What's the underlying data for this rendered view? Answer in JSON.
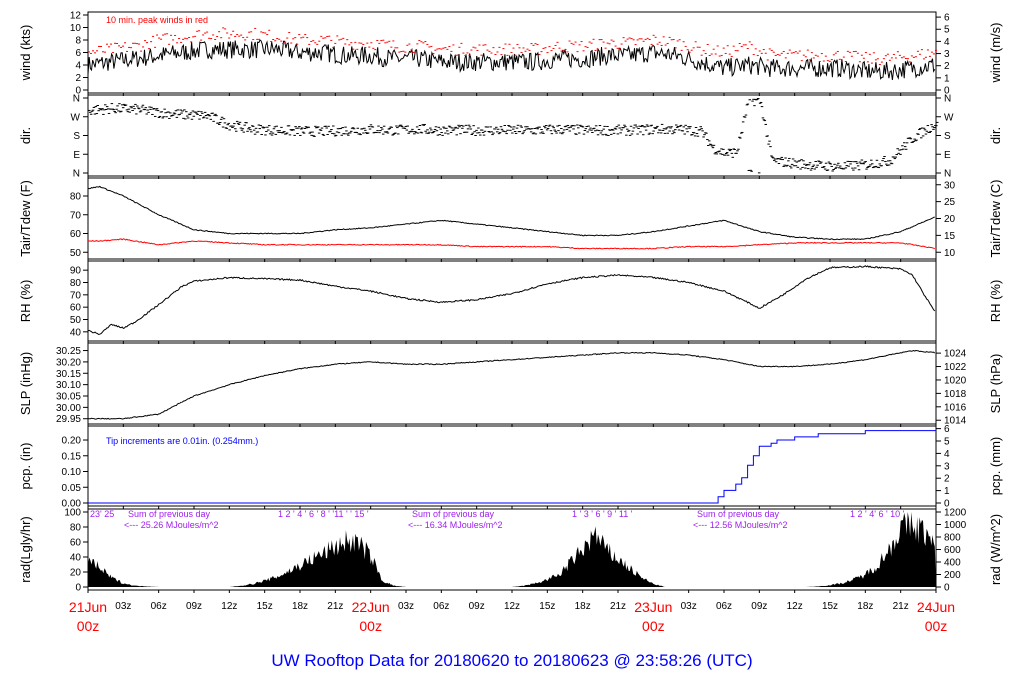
{
  "title": "UW Rooftop Data for 20180620  to  20180623 @ 23:58:26  (UTC)",
  "colors": {
    "line": "#000000",
    "peak": "#ff0000",
    "dew": "#ff0000",
    "pcp": "#0000ff",
    "annot": "#a020f0",
    "title": "#0000ff",
    "date": "#ff0000"
  },
  "chart_data": [
    {
      "id": "wind",
      "type": "line",
      "ylabel": "wind (kts)",
      "ylabel2": "wind (m/s)",
      "ylim": [
        0,
        12
      ],
      "yticks": [
        0,
        2,
        4,
        6,
        8,
        10,
        12
      ],
      "y2ticks": [
        0,
        1,
        2,
        3,
        4,
        5,
        6
      ],
      "y2factor": 0.5144,
      "annotation": "10 min. peak winds in red",
      "x_hours": [
        0,
        2,
        4,
        6,
        8,
        10,
        12,
        14,
        16,
        18,
        20,
        22,
        24,
        26,
        28,
        30,
        32,
        34,
        36,
        38,
        40,
        42,
        44,
        46,
        48,
        50,
        52,
        54,
        56,
        58,
        60,
        62,
        64,
        66,
        68,
        70,
        72
      ],
      "series": [
        {
          "name": "wind",
          "values": [
            4,
            4.5,
            5,
            5.5,
            6,
            6.5,
            6.5,
            6.5,
            6.5,
            6,
            6,
            5.5,
            5.5,
            5,
            5,
            4.5,
            4.5,
            4.5,
            4.5,
            4.5,
            5,
            5,
            5.5,
            5.5,
            6,
            5.5,
            4.5,
            3.5,
            4,
            3.5,
            3.5,
            3.5,
            3.5,
            3,
            3,
            3.5,
            4
          ]
        },
        {
          "name": "peak",
          "values": [
            6,
            6.5,
            7,
            8,
            8.5,
            9,
            9,
            9,
            8.5,
            8,
            8,
            7.5,
            7.5,
            7,
            7,
            6.5,
            6.5,
            6.5,
            6.5,
            6.5,
            7,
            7,
            7.5,
            7.5,
            8,
            7.5,
            6.5,
            6,
            7,
            5.5,
            5.5,
            5.5,
            5.5,
            5,
            5,
            5.5,
            6
          ]
        }
      ]
    },
    {
      "id": "dir",
      "type": "scatter",
      "ylabel": "dir.",
      "ylabel2": "dir.",
      "ylim": [
        0,
        360
      ],
      "yticklabels": [
        "N",
        "E",
        "S",
        "W",
        "N"
      ],
      "x_hours": [
        0,
        2,
        4,
        6,
        8,
        10,
        12,
        14,
        16,
        18,
        20,
        22,
        24,
        26,
        28,
        30,
        32,
        34,
        36,
        38,
        40,
        42,
        44,
        46,
        48,
        50,
        52,
        53,
        54,
        55,
        56,
        57,
        58,
        60,
        62,
        64,
        66,
        68,
        70,
        72
      ],
      "values": [
        300,
        310,
        305,
        290,
        280,
        275,
        230,
        210,
        205,
        200,
        200,
        205,
        210,
        205,
        210,
        205,
        205,
        205,
        205,
        205,
        210,
        205,
        205,
        205,
        210,
        210,
        200,
        120,
        95,
        100,
        350,
        345,
        60,
        45,
        35,
        30,
        40,
        60,
        170,
        240
      ]
    },
    {
      "id": "temp",
      "type": "line",
      "ylabel": "Tair/Tdew (F)",
      "ylabel2": "Tair/Tdew (C)",
      "ylim": [
        48,
        88
      ],
      "yticks": [
        50,
        60,
        70,
        80
      ],
      "y2ticks": [
        10,
        15,
        20,
        25,
        30
      ],
      "x_hours": [
        0,
        1,
        3,
        6,
        9,
        12,
        15,
        18,
        21,
        24,
        27,
        30,
        33,
        36,
        39,
        42,
        45,
        48,
        51,
        54,
        57,
        60,
        63,
        66,
        69,
        72
      ],
      "series": [
        {
          "name": "Tair",
          "values": [
            84,
            85,
            80,
            70,
            62,
            60,
            60,
            60,
            62,
            63,
            65,
            67,
            65,
            63,
            61,
            59,
            59,
            61,
            64,
            67,
            61,
            58,
            57,
            57,
            61,
            69
          ]
        },
        {
          "name": "Tdew",
          "values": [
            56,
            56,
            57,
            54,
            56,
            55,
            54,
            54,
            54,
            54,
            54,
            54,
            53,
            53,
            53,
            52,
            52,
            52,
            53,
            53,
            54,
            55,
            55,
            55,
            55,
            52
          ]
        }
      ]
    },
    {
      "id": "rh",
      "type": "line",
      "ylabel": "RH (%)",
      "ylabel2": "RH (%)",
      "ylim": [
        35,
        95
      ],
      "yticks": [
        40,
        50,
        60,
        70,
        80,
        90
      ],
      "x_hours": [
        0,
        1,
        2,
        3,
        4,
        6,
        8,
        9,
        12,
        15,
        18,
        21,
        24,
        27,
        30,
        33,
        36,
        39,
        42,
        45,
        48,
        51,
        54,
        56,
        57,
        59,
        61,
        63,
        66,
        69,
        70,
        71,
        72
      ],
      "series": [
        {
          "name": "RH",
          "values": [
            41,
            38,
            46,
            43,
            48,
            62,
            77,
            81,
            84,
            83,
            82,
            77,
            73,
            67,
            64,
            66,
            71,
            79,
            84,
            86,
            84,
            80,
            73,
            64,
            59,
            70,
            83,
            92,
            93,
            91,
            86,
            70,
            55
          ]
        }
      ]
    },
    {
      "id": "slp",
      "type": "line",
      "ylabel": "SLP (inHg)",
      "ylabel2": "SLP (hPa)",
      "ylim": [
        29.94,
        30.27
      ],
      "yticks": [
        29.95,
        30.0,
        30.05,
        30.1,
        30.15,
        30.2,
        30.25
      ],
      "y2ticks": [
        1014,
        1016,
        1018,
        1020,
        1022,
        1024
      ],
      "x_hours": [
        0,
        3,
        6,
        9,
        12,
        15,
        18,
        21,
        24,
        27,
        30,
        33,
        36,
        39,
        42,
        45,
        48,
        51,
        54,
        57,
        60,
        63,
        66,
        69,
        70,
        72
      ],
      "series": [
        {
          "name": "SLP",
          "values": [
            29.95,
            29.95,
            29.97,
            30.05,
            30.1,
            30.14,
            30.17,
            30.19,
            30.2,
            30.19,
            30.19,
            30.2,
            30.21,
            30.22,
            30.23,
            30.24,
            30.24,
            30.23,
            30.21,
            30.18,
            30.18,
            30.19,
            30.21,
            30.24,
            30.25,
            30.24
          ]
        }
      ]
    },
    {
      "id": "pcp",
      "type": "step",
      "ylabel": "pcp. (in)",
      "ylabel2": "pcp. (mm)",
      "ylim": [
        0,
        0.235
      ],
      "yticks": [
        0.0,
        0.05,
        0.1,
        0.15,
        0.2
      ],
      "y2ticks": [
        0,
        1,
        2,
        3,
        4,
        5,
        6
      ],
      "annotation": "Tip increments are 0.01in. (0.254mm.)",
      "x_hours": [
        0,
        53,
        53.5,
        54,
        55,
        55.5,
        56,
        56.5,
        57,
        58,
        58.5,
        60,
        62,
        66,
        72
      ],
      "series": [
        {
          "name": "precip",
          "values": [
            0,
            0,
            0.02,
            0.04,
            0.06,
            0.08,
            0.12,
            0.15,
            0.18,
            0.19,
            0.2,
            0.21,
            0.22,
            0.23,
            0.23
          ]
        }
      ]
    },
    {
      "id": "rad",
      "type": "area",
      "ylabel": "rad(Lgly/hr)",
      "ylabel2": "rad (W/m^2)",
      "ylim": [
        0,
        100
      ],
      "yticks": [
        0,
        20,
        40,
        60,
        80,
        100
      ],
      "y2ticks": [
        0,
        200,
        400,
        600,
        800,
        1000,
        1200
      ],
      "values_hourly": [
        45,
        30,
        15,
        6,
        2,
        1,
        0,
        0,
        0,
        0,
        0,
        0,
        0,
        2,
        5,
        10,
        16,
        25,
        35,
        45,
        55,
        65,
        75,
        70,
        50,
        10,
        2,
        0,
        0,
        0,
        0,
        0,
        0,
        0,
        0,
        0,
        0,
        2,
        6,
        12,
        20,
        40,
        60,
        85,
        60,
        45,
        30,
        15,
        5,
        0,
        0,
        0,
        0,
        0,
        0,
        0,
        0,
        0,
        0,
        0,
        0,
        0,
        1,
        3,
        6,
        12,
        20,
        35,
        60,
        95,
        100,
        90,
        60
      ],
      "day_notes": [
        {
          "hours": "23'   25",
          "sum": "Sum of previous day",
          "value": "<--- 25.26 MJoules/m^2"
        },
        {
          "hours": "1   2   ' 4  ' 6  ' 8 ' '11 ' '  15 '",
          "sum": "Sum of previous day",
          "value": "<--- 16.34 MJoules/m^2"
        },
        {
          "hours": "1  ' 3 ' 6 '  9 ' 11  '",
          "sum": "Sum of previous day",
          "value": "<--- 12.56 MJoules/m^2"
        },
        {
          "hours": "1   2  ' 4' 6 ' 10 '"
        }
      ]
    }
  ],
  "xaxis": {
    "hour_ticks": [
      "03z",
      "06z",
      "09z",
      "12z",
      "15z",
      "18z",
      "21z"
    ],
    "days": [
      {
        "date": "21Jun",
        "z": "00z"
      },
      {
        "date": "22Jun",
        "z": "00z"
      },
      {
        "date": "23Jun",
        "z": "00z"
      },
      {
        "date": "24Jun",
        "z": "00z"
      }
    ]
  }
}
